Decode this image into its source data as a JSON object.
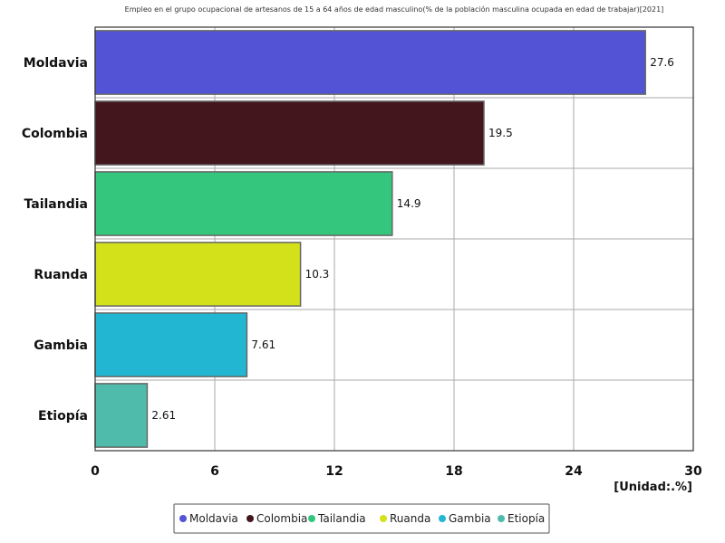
{
  "chart_data": {
    "type": "bar",
    "orientation": "horizontal",
    "title": "Empleo en el grupo ocupacional de artesanos de 15 a 64 años de edad masculino(% de la población masculina ocupada en edad de trabajar)[2021]",
    "unit_label": "[Unidad:.%]",
    "categories": [
      "Moldavia",
      "Colombia",
      "Tailandia",
      "Ruanda",
      "Gambia",
      "Etiopía"
    ],
    "values": [
      27.6,
      19.5,
      14.9,
      10.3,
      7.61,
      2.61
    ],
    "value_labels": [
      "27.6",
      "19.5",
      "14.9",
      "10.3",
      "7.61",
      "2.61"
    ],
    "colors": [
      "#5353d6",
      "#43151c",
      "#34c67c",
      "#d3e11a",
      "#22b6d2",
      "#4fbcab"
    ],
    "xlim": [
      0,
      30
    ],
    "xticks": [
      0,
      6,
      12,
      18,
      24,
      30
    ],
    "grid": true,
    "legend": {
      "position": "bottom",
      "entries": [
        "Moldavia",
        "Colombia",
        "Tailandia",
        "Ruanda",
        "Gambia",
        "Etiopía"
      ]
    }
  }
}
